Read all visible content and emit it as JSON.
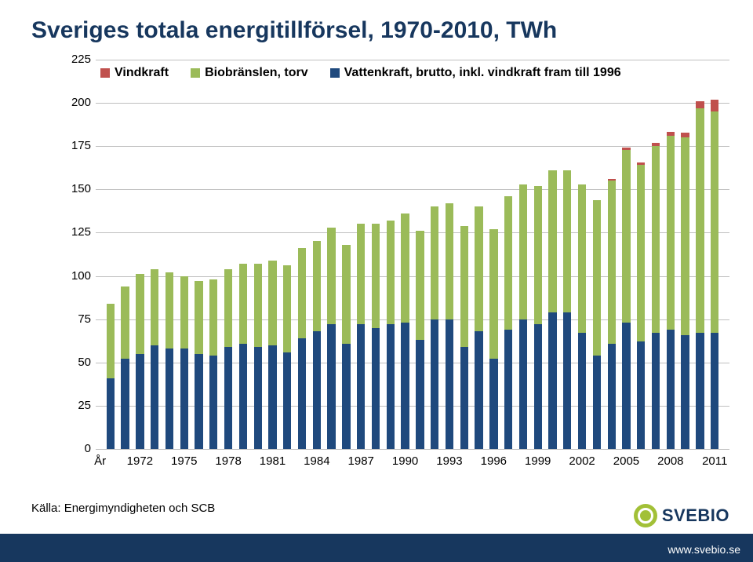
{
  "title": "Sveriges totala energitillförsel, 1970-2010, TWh",
  "source": "Källa: Energimyndigheten och SCB",
  "footer_url": "www.svebio.se",
  "logo_text": "SVEBIO",
  "colors": {
    "title": "#17375e",
    "footer": "#17375e",
    "grid": "#bfbfbf",
    "background": "#ffffff"
  },
  "chart": {
    "type": "bar-stacked",
    "ylim": [
      0,
      225
    ],
    "ytick_step": 25,
    "yticks": [
      0,
      25,
      50,
      75,
      100,
      125,
      150,
      175,
      200,
      225
    ],
    "x_first_label": "År",
    "x_axis_labels": [
      1972,
      1975,
      1978,
      1981,
      1984,
      1987,
      1990,
      1993,
      1996,
      1999,
      2002,
      2005,
      2008,
      2011
    ],
    "x_label_mode": "every3_from1",
    "bar_rel_width": 0.55,
    "plot_font_size": 15,
    "legend": [
      {
        "key": "vindkraft",
        "label": "Vindkraft",
        "color": "#c0504d"
      },
      {
        "key": "bio",
        "label": "Biobränslen, torv",
        "color": "#9bbb59"
      },
      {
        "key": "vatten",
        "label": "Vattenkraft, brutto, inkl. vindkraft fram till 1996",
        "color": "#1f497d"
      }
    ],
    "years": [
      1970,
      1971,
      1972,
      1973,
      1974,
      1975,
      1976,
      1977,
      1978,
      1979,
      1980,
      1981,
      1982,
      1983,
      1984,
      1985,
      1986,
      1987,
      1988,
      1989,
      1990,
      1991,
      1992,
      1993,
      1994,
      1995,
      1996,
      1997,
      1998,
      1999,
      2000,
      2001,
      2002,
      2003,
      2004,
      2005,
      2006,
      2007,
      2008,
      2009,
      2010,
      2011
    ],
    "series": {
      "vatten": [
        41,
        52,
        55,
        60,
        58,
        58,
        55,
        54,
        59,
        61,
        59,
        60,
        56,
        64,
        68,
        72,
        61,
        72,
        70,
        72,
        73,
        63,
        75,
        75,
        59,
        68,
        52,
        69,
        75,
        72,
        79,
        79,
        67,
        54,
        61,
        73,
        62,
        67,
        69,
        66,
        67,
        67
      ],
      "bio": [
        43,
        42,
        46,
        44,
        44,
        42,
        42,
        44,
        45,
        46,
        48,
        49,
        50,
        52,
        52,
        56,
        57,
        58,
        60,
        60,
        63,
        63,
        65,
        67,
        70,
        72,
        75,
        77,
        78,
        80,
        82,
        82,
        86,
        90,
        94,
        100,
        102,
        108,
        112,
        114,
        130,
        128
      ],
      "vindkraft": [
        0,
        0,
        0,
        0,
        0,
        0,
        0,
        0,
        0,
        0,
        0,
        0,
        0,
        0,
        0,
        0,
        0,
        0,
        0,
        0,
        0,
        0,
        0,
        0,
        0,
        0,
        0,
        0,
        0,
        0,
        0,
        0,
        0,
        0,
        1,
        1,
        1.5,
        2,
        2.5,
        3,
        4,
        7
      ]
    }
  }
}
